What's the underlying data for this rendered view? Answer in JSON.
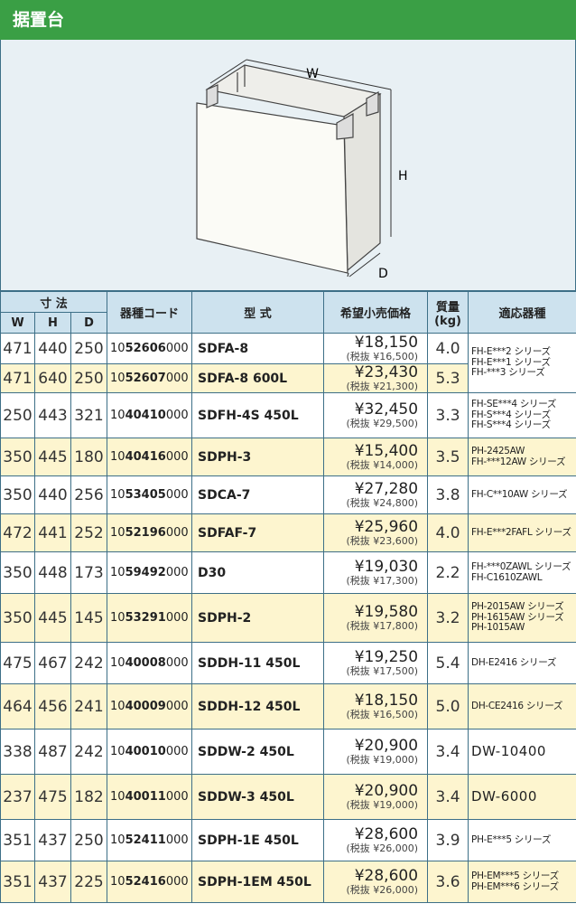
{
  "header": {
    "title": "据置台"
  },
  "diagram": {
    "labels": [
      "W",
      "H",
      "D"
    ]
  },
  "table": {
    "headers": {
      "dimensions": "寸 法",
      "w": "W",
      "h": "H",
      "d": "D",
      "code": "器種コード",
      "model": "型 式",
      "price": "希望小売価格",
      "weight": [
        "質量",
        "(kg)"
      ],
      "compatible": "適応器種"
    },
    "rows": [
      {
        "w": "471",
        "h": "440",
        "d": "250",
        "code": "1052606000",
        "model": "SDFA-8",
        "price": "¥18,150",
        "price_ex": "(税抜 ¥16,500)",
        "weight": "4.0",
        "compatible": [
          "FH-E***2 シリーズ",
          "FH-E***1 シリーズ",
          "FH-***3 シリーズ"
        ]
      },
      {
        "w": "471",
        "h": "640",
        "d": "250",
        "code": "1052607000",
        "model": "SDFA-8 600L",
        "price": "¥23,430",
        "price_ex": "(税抜 ¥21,300)",
        "weight": "5.3"
      },
      {
        "w": "250",
        "h": "443",
        "d": "321",
        "code": "1040410000",
        "model": "SDFH-4S 450L",
        "price": "¥32,450",
        "price_ex": "(税抜 ¥29,500)",
        "weight": "3.3",
        "compatible": [
          "FH-SE***4 シリーズ",
          "FH-S***4 シリーズ",
          "FH-S***4 シリーズ"
        ]
      },
      {
        "w": "350",
        "h": "445",
        "d": "180",
        "code": "1040416000",
        "model": "SDPH-3",
        "price": "¥15,400",
        "price_ex": "(税抜 ¥14,000)",
        "weight": "3.5",
        "compatible": [
          "PH-2425AW",
          "FH-***12AW シリーズ"
        ]
      },
      {
        "w": "350",
        "h": "440",
        "d": "256",
        "code": "1053405000",
        "model": "SDCA-7",
        "price": "¥27,280",
        "price_ex": "(税抜 ¥24,800)",
        "weight": "3.8",
        "compatible": [
          "FH-C**10AW シリーズ"
        ]
      },
      {
        "w": "472",
        "h": "441",
        "d": "252",
        "code": "1052196000",
        "model": "SDFAF-7",
        "price": "¥25,960",
        "price_ex": "(税抜 ¥23,600)",
        "weight": "4.0",
        "compatible": [
          "FH-E***2FAFL シリーズ"
        ]
      },
      {
        "w": "350",
        "h": "448",
        "d": "173",
        "code": "1059492000",
        "model": "D30",
        "price": "¥19,030",
        "price_ex": "(税抜 ¥17,300)",
        "weight": "2.2",
        "compatible": [
          "FH-***0ZAWL シリーズ",
          "FH-C1610ZAWL"
        ]
      },
      {
        "w": "350",
        "h": "445",
        "d": "145",
        "code": "1053291000",
        "model": "SDPH-2",
        "price": "¥19,580",
        "price_ex": "(税抜 ¥17,800)",
        "weight": "3.2",
        "compatible": [
          "PH-2015AW シリーズ",
          "PH-1615AW シリーズ",
          "PH-1015AW"
        ]
      },
      {
        "w": "475",
        "h": "467",
        "d": "242",
        "code": "1040008000",
        "model": "SDDH-11 450L",
        "price": "¥19,250",
        "price_ex": "(税抜 ¥17,500)",
        "weight": "5.4",
        "compatible": [
          "DH-E2416 シリーズ"
        ]
      },
      {
        "w": "464",
        "h": "456",
        "d": "241",
        "code": "1040009000",
        "model": "SDDH-12 450L",
        "price": "¥18,150",
        "price_ex": "(税抜 ¥16,500)",
        "weight": "5.0",
        "compatible": [
          "DH-CE2416 シリーズ"
        ]
      },
      {
        "w": "338",
        "h": "487",
        "d": "242",
        "code": "1040010000",
        "model": "SDDW-2 450L",
        "price": "¥20,900",
        "price_ex": "(税抜 ¥19,000)",
        "weight": "3.4",
        "compatible": [
          "DW-10400"
        ]
      },
      {
        "w": "237",
        "h": "475",
        "d": "182",
        "code": "1040011000",
        "model": "SDDW-3 450L",
        "price": "¥20,900",
        "price_ex": "(税抜 ¥19,000)",
        "weight": "3.4",
        "compatible": [
          "DW-6000"
        ]
      },
      {
        "w": "351",
        "h": "437",
        "d": "250",
        "code": "1052411000",
        "model": "SDPH-1E 450L",
        "price": "¥28,600",
        "price_ex": "(税抜 ¥26,000)",
        "weight": "3.9",
        "compatible": [
          "PH-E***5 シリーズ"
        ]
      },
      {
        "w": "351",
        "h": "437",
        "d": "225",
        "code": "1052416000",
        "model": "SDPH-1EM 450L",
        "price": "¥28,600",
        "price_ex": "(税抜 ¥26,000)",
        "weight": "3.6",
        "compatible": [
          "PH-EM***5 シリーズ",
          "PH-EM***6 シリーズ"
        ]
      }
    ]
  }
}
